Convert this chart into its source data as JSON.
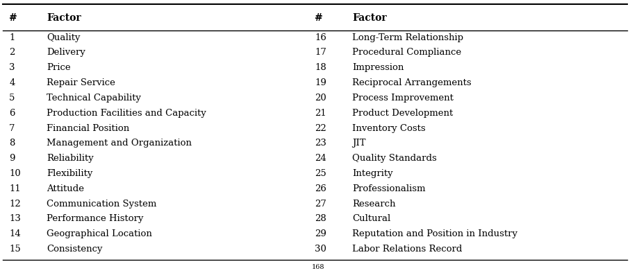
{
  "left_numbers": [
    "1",
    "2",
    "3",
    "4",
    "5",
    "6",
    "7",
    "8",
    "9",
    "10",
    "11",
    "12",
    "13",
    "14",
    "15"
  ],
  "left_factors": [
    "Quality",
    "Delivery",
    "Price",
    "Repair Service",
    "Technical Capability",
    "Production Facilities and Capacity",
    "Financial Position",
    "Management and Organization",
    "Reliability",
    "Flexibility",
    "Attitude",
    "Communication System",
    "Performance History",
    "Geographical Location",
    "Consistency"
  ],
  "right_numbers": [
    "16",
    "17",
    "18",
    "19",
    "20",
    "21",
    "22",
    "23",
    "24",
    "25",
    "26",
    "27",
    "28",
    "29",
    "30"
  ],
  "right_factors": [
    "Long-Term Relationship",
    "Procedural Compliance",
    "Impression",
    "Reciprocal Arrangements",
    "Process Improvement",
    "Product Development",
    "Inventory Costs",
    "JIT",
    "Quality Standards",
    "Integrity",
    "Professionalism",
    "Research",
    "Cultural",
    "Reputation and Position in Industry",
    "Labor Relations Record"
  ],
  "col_headers": [
    "#",
    "Factor",
    "#",
    "Factor"
  ],
  "footnote": "168",
  "bg_color": "#ffffff",
  "text_color": "#000000",
  "header_fontsize": 10,
  "body_fontsize": 9.5,
  "footnote_fontsize": 7
}
